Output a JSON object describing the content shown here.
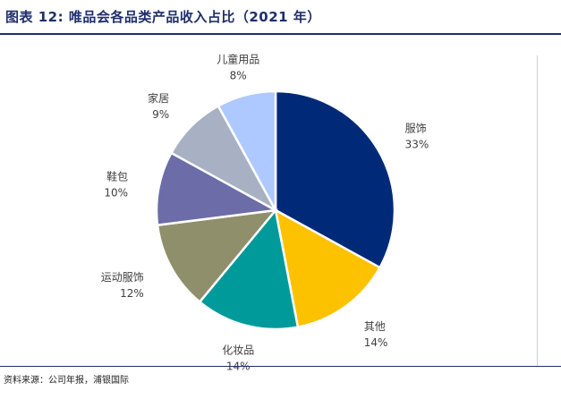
{
  "header": {
    "title": "图表 12: 唯品会各品类产品收入占比（2021 年）"
  },
  "footer": {
    "source": "资料来源：公司年报，浦银国际"
  },
  "chart_data": {
    "type": "pie",
    "title": "",
    "start_angle_deg": 0,
    "direction": "clockwise",
    "slices": [
      {
        "label": "服饰",
        "value": 33,
        "value_label": "33%",
        "color": "#002a78"
      },
      {
        "label": "其他",
        "value": 14,
        "value_label": "14%",
        "color": "#fcc200"
      },
      {
        "label": "化妆品",
        "value": 14,
        "value_label": "14%",
        "color": "#009a9a"
      },
      {
        "label": "运动服饰",
        "value": 12,
        "value_label": "12%",
        "color": "#8f8f6b"
      },
      {
        "label": "鞋包",
        "value": 10,
        "value_label": "10%",
        "color": "#6c6ca8"
      },
      {
        "label": "家居",
        "value": 9,
        "value_label": "9%",
        "color": "#a8b1c3"
      },
      {
        "label": "儿童用品",
        "value": 8,
        "value_label": "8%",
        "color": "#adc9ff"
      }
    ]
  }
}
